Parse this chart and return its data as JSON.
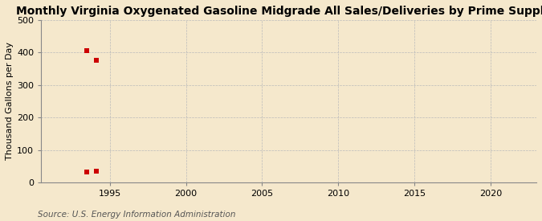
{
  "title": "Monthly Virginia Oxygenated Gasoline Midgrade All Sales/Deliveries by Prime Supplier",
  "ylabel": "Thousand Gallons per Day",
  "source": "Source: U.S. Energy Information Administration",
  "x_data": [
    1993.5,
    1994.1,
    1993.5,
    1994.1
  ],
  "y_data": [
    405,
    375,
    33,
    35
  ],
  "marker_color": "#cc0000",
  "marker_size": 16,
  "xlim": [
    1990.5,
    2023
  ],
  "ylim": [
    0,
    500
  ],
  "xticks": [
    1995,
    2000,
    2005,
    2010,
    2015,
    2020
  ],
  "yticks": [
    0,
    100,
    200,
    300,
    400,
    500
  ],
  "background_color": "#f5e8cc",
  "plot_bg_color": "#f5e8cc",
  "grid_color": "#bbbbbb",
  "title_fontsize": 10,
  "ylabel_fontsize": 8,
  "tick_fontsize": 8,
  "source_fontsize": 7.5
}
